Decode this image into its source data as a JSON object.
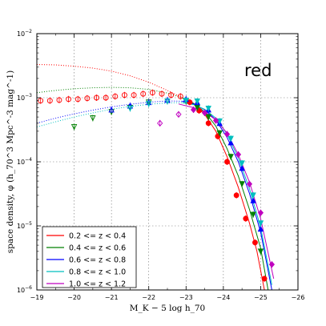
{
  "chart_data": {
    "type": "scatter",
    "panel_label": "red",
    "xlabel": "M_K − 5 log h_70",
    "ylabel": "space density, φ (h_70^3 Mpc^-3 mag^-1)",
    "xlim": [
      -19,
      -26
    ],
    "ylim": [
      1e-06,
      0.01
    ],
    "yscale": "log",
    "grid": true,
    "legend_position": "lower-left",
    "x_ticks": [
      {
        "value": -19,
        "label": "−19"
      },
      {
        "value": -20,
        "label": "−20"
      },
      {
        "value": -21,
        "label": "−21"
      },
      {
        "value": -22,
        "label": "−22"
      },
      {
        "value": -23,
        "label": "−23"
      },
      {
        "value": -24,
        "label": "−24"
      },
      {
        "value": -25,
        "label": "−25"
      },
      {
        "value": -26,
        "label": "−26"
      }
    ],
    "y_ticks": [
      {
        "value": 1e-06,
        "base": "10",
        "exp": "−6"
      },
      {
        "value": 1e-05,
        "base": "10",
        "exp": "−5"
      },
      {
        "value": 0.0001,
        "base": "10",
        "exp": "−4"
      },
      {
        "value": 0.001,
        "base": "10",
        "exp": "−3"
      },
      {
        "value": 0.01,
        "base": "10",
        "exp": "−2"
      }
    ],
    "series": [
      {
        "name": "0.2 <= z < 0.4",
        "color": "#ff0000",
        "marker": "circle",
        "points": [
          [
            -19.1,
            0.0009
          ],
          [
            -19.35,
            0.0009
          ],
          [
            -19.6,
            0.00092
          ],
          [
            -19.85,
            0.00095
          ],
          [
            -20.1,
            0.00095
          ],
          [
            -20.35,
            0.00098
          ],
          [
            -20.6,
            0.001
          ],
          [
            -20.85,
            0.001
          ],
          [
            -21.1,
            0.00105
          ],
          [
            -21.35,
            0.0011
          ],
          [
            -21.6,
            0.0011
          ],
          [
            -21.85,
            0.00115
          ],
          [
            -22.1,
            0.0012
          ],
          [
            -22.35,
            0.00115
          ],
          [
            -22.6,
            0.0011
          ],
          [
            -22.85,
            0.00105
          ],
          [
            -23.1,
            0.00085
          ],
          [
            -23.35,
            0.00063
          ],
          [
            -23.6,
            0.0004
          ],
          [
            -23.85,
            0.00025
          ],
          [
            -24.1,
            0.0001
          ],
          [
            -24.35,
            3e-05
          ],
          [
            -24.6,
            1.3e-05
          ],
          [
            -24.85,
            5.5e-06
          ],
          [
            -25.1,
            1.5e-06
          ]
        ],
        "filled_from": -23,
        "dotted_curve": [
          [
            -19,
            0.0033
          ],
          [
            -19.5,
            0.00325
          ],
          [
            -20,
            0.0031
          ],
          [
            -20.5,
            0.0029
          ],
          [
            -21,
            0.0026
          ],
          [
            -21.5,
            0.0022
          ],
          [
            -22,
            0.00175
          ],
          [
            -22.5,
            0.0013
          ],
          [
            -22.9,
            0.001
          ]
        ],
        "solid_curve": [
          [
            -22.9,
            0.001
          ],
          [
            -23.2,
            0.0008
          ],
          [
            -23.5,
            0.00055
          ],
          [
            -23.8,
            0.0003
          ],
          [
            -24.1,
            0.00012
          ],
          [
            -24.4,
            4e-05
          ],
          [
            -24.7,
            1.1e-05
          ],
          [
            -24.9,
            4e-06
          ],
          [
            -25.1,
            1e-06
          ]
        ]
      },
      {
        "name": "0.4 <= z < 0.6",
        "color": "#008000",
        "marker": "triangle-down",
        "points": [
          [
            -20.0,
            0.00035
          ],
          [
            -20.5,
            0.00048
          ],
          [
            -21.0,
            0.0006
          ],
          [
            -21.5,
            0.0007
          ],
          [
            -22.0,
            0.00085
          ],
          [
            -22.5,
            0.00088
          ],
          [
            -23.0,
            0.00088
          ],
          [
            -23.3,
            0.0007
          ],
          [
            -23.6,
            0.0005
          ],
          [
            -23.9,
            0.00028
          ],
          [
            -24.2,
            0.00012
          ],
          [
            -24.5,
            4.5e-05
          ],
          [
            -24.8,
            1.5e-05
          ],
          [
            -25.0,
            4e-06
          ]
        ],
        "filled_from": -23,
        "dotted_curve": [
          [
            -19,
            0.0012
          ],
          [
            -19.5,
            0.0013
          ],
          [
            -20,
            0.00138
          ],
          [
            -20.5,
            0.00143
          ],
          [
            -21,
            0.00145
          ],
          [
            -21.5,
            0.00143
          ],
          [
            -22,
            0.00135
          ],
          [
            -22.5,
            0.00118
          ],
          [
            -22.9,
            0.001
          ]
        ],
        "solid_curve": [
          [
            -22.9,
            0.001
          ],
          [
            -23.2,
            0.00082
          ],
          [
            -23.5,
            0.0006
          ],
          [
            -23.8,
            0.00036
          ],
          [
            -24.1,
            0.00016
          ],
          [
            -24.4,
            6e-05
          ],
          [
            -24.7,
            1.8e-05
          ],
          [
            -25.0,
            4.5e-06
          ],
          [
            -25.2,
            1e-06
          ]
        ]
      },
      {
        "name": "0.6 <= z < 0.8",
        "color": "#0000ff",
        "marker": "triangle-up",
        "points": [
          [
            -21.0,
            0.00065
          ],
          [
            -21.5,
            0.00075
          ],
          [
            -22.0,
            0.00085
          ],
          [
            -22.5,
            0.00092
          ],
          [
            -23.0,
            0.00095
          ],
          [
            -23.3,
            0.00085
          ],
          [
            -23.6,
            0.00065
          ],
          [
            -23.9,
            0.0004
          ],
          [
            -24.2,
            0.0002
          ],
          [
            -24.5,
            8e-05
          ],
          [
            -24.8,
            2.5e-05
          ],
          [
            -25.0,
            9e-06
          ]
        ],
        "filled_from": -23,
        "dotted_curve": [
          [
            -19,
            0.0004
          ],
          [
            -19.5,
            0.00048
          ],
          [
            -20,
            0.00056
          ],
          [
            -20.5,
            0.00064
          ],
          [
            -21,
            0.00072
          ],
          [
            -21.5,
            0.00079
          ],
          [
            -22,
            0.00085
          ],
          [
            -22.5,
            0.00089
          ],
          [
            -22.9,
            0.00088
          ]
        ],
        "solid_curve": [
          [
            -22.9,
            0.00088
          ],
          [
            -23.2,
            0.0008
          ],
          [
            -23.5,
            0.00065
          ],
          [
            -23.8,
            0.00045
          ],
          [
            -24.1,
            0.00024
          ],
          [
            -24.4,
            0.0001
          ],
          [
            -24.7,
            3.2e-05
          ],
          [
            -25.0,
            8e-06
          ],
          [
            -25.3,
            1e-06
          ]
        ]
      },
      {
        "name": "0.8 <= z < 1.0",
        "color": "#00bfbf",
        "marker": "triangle-down",
        "points": [
          [
            -21.5,
            0.00068
          ],
          [
            -22.0,
            0.0008
          ],
          [
            -22.5,
            0.00088
          ],
          [
            -23.0,
            0.0009
          ],
          [
            -23.3,
            0.00088
          ],
          [
            -23.6,
            0.00068
          ],
          [
            -23.9,
            0.00043
          ],
          [
            -24.2,
            0.00023
          ],
          [
            -24.5,
            9.5e-05
          ],
          [
            -24.8,
            3e-05
          ],
          [
            -25.0,
            1.1e-05
          ]
        ],
        "filled_from": -23,
        "dotted_curve": [
          [
            -19,
            0.00035
          ],
          [
            -19.5,
            0.00042
          ],
          [
            -20,
            0.0005
          ],
          [
            -20.5,
            0.00058
          ],
          [
            -21,
            0.00066
          ],
          [
            -21.5,
            0.00073
          ],
          [
            -22,
            0.00079
          ],
          [
            -22.5,
            0.00083
          ],
          [
            -22.9,
            0.00084
          ]
        ],
        "solid_curve": [
          [
            -22.9,
            0.00084
          ],
          [
            -23.2,
            0.00078
          ],
          [
            -23.5,
            0.00066
          ],
          [
            -23.8,
            0.00048
          ],
          [
            -24.1,
            0.00027
          ],
          [
            -24.4,
            0.000115
          ],
          [
            -24.7,
            3.8e-05
          ],
          [
            -25.0,
            9.5e-06
          ],
          [
            -25.3,
            1.2e-06
          ]
        ]
      },
      {
        "name": "1.0 <= z < 1.2",
        "color": "#bf00bf",
        "marker": "diamond",
        "points": [
          [
            -22.3,
            0.0004
          ],
          [
            -22.8,
            0.00055
          ],
          [
            -23.2,
            0.00065
          ],
          [
            -23.5,
            0.00058
          ],
          [
            -23.8,
            0.00044
          ],
          [
            -24.1,
            0.00027
          ],
          [
            -24.4,
            0.00013
          ],
          [
            -24.7,
            4.5e-05
          ],
          [
            -25.0,
            1.6e-05
          ],
          [
            -25.3,
            2.5e-06
          ]
        ],
        "filled_from": -23,
        "dotted_curve": [],
        "solid_curve": [
          [
            -22.8,
            0.0008
          ],
          [
            -23.2,
            0.0007
          ],
          [
            -23.5,
            0.0006
          ],
          [
            -23.8,
            0.00045
          ],
          [
            -24.1,
            0.00028
          ],
          [
            -24.4,
            0.00013
          ],
          [
            -24.7,
            4.8e-05
          ],
          [
            -25.0,
            1.3e-05
          ],
          [
            -25.35,
            1.5e-06
          ]
        ]
      }
    ]
  }
}
